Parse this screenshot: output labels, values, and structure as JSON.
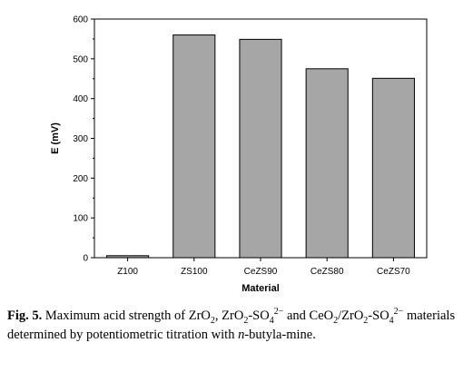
{
  "chart_data": {
    "type": "bar",
    "categories": [
      "Z100",
      "ZS100",
      "CeZS90",
      "CeZS80",
      "CeZS70"
    ],
    "values": [
      5,
      560,
      549,
      475,
      451
    ],
    "xlabel": "Material",
    "ylabel": "E (mV)",
    "ylim": [
      0,
      600
    ],
    "yticks": [
      "0",
      "100",
      "200",
      "300",
      "400",
      "500",
      "600"
    ],
    "bar_color": "#a6a6a6",
    "grid": false
  },
  "caption": {
    "label": "Fig. 5.",
    "t1": " Maximum acid strength of ZrO",
    "s1": "2",
    "t2": ", ZrO",
    "s2": "2",
    "t3": "-SO",
    "s3": "4",
    "p3": "2−",
    "t4": " and CeO",
    "s4": "2",
    "t5": "/ZrO",
    "s5": "2",
    "t6": "-SO",
    "s6": "4",
    "p6": "2−",
    "t7": " materials determined by potentiometric titration with ",
    "italic": "n",
    "t8": "-butyla-mine."
  }
}
